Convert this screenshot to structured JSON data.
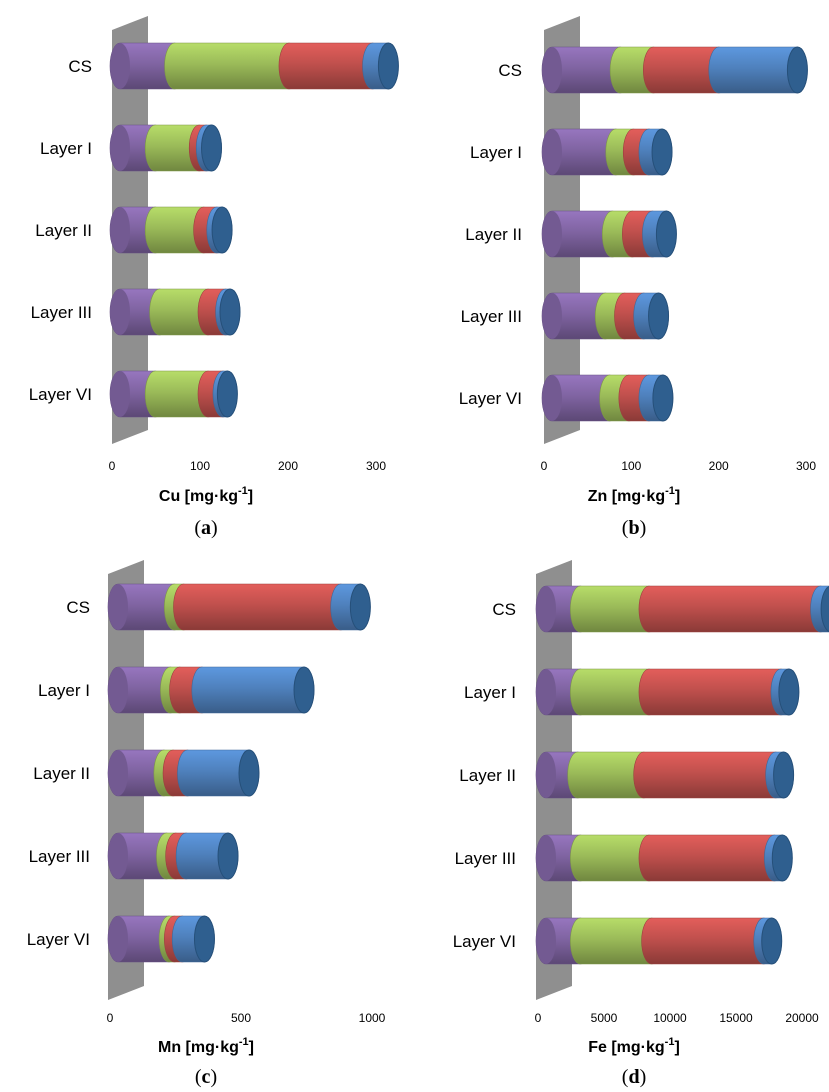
{
  "colors": {
    "wall": "#8f8f8f",
    "segments": [
      "#8064a2",
      "#9bbb59",
      "#c0504d",
      "#4f81bd"
    ]
  },
  "chart_data": [
    {
      "type": "bar",
      "orientation": "horizontal",
      "stacked": true,
      "style": "3d-cylinder",
      "panel_label": "(a)",
      "xlabel": "Cu [mg·kg-1]",
      "xlabel_main": "Cu [mg·kg",
      "xlabel_sup": "-1",
      "xlabel_close": "]",
      "categories": [
        "CS",
        "Layer  I",
        "Layer  II",
        "Layer  III",
        "Layer  VI"
      ],
      "xlim": [
        0,
        300
      ],
      "xticks": [
        0,
        100,
        200,
        300
      ],
      "series": [
        {
          "values": [
            62,
            40,
            40,
            45,
            40
          ]
        },
        {
          "values": [
            130,
            50,
            55,
            55,
            60
          ]
        },
        {
          "values": [
            95,
            8,
            15,
            20,
            17
          ]
        },
        {
          "values": [
            18,
            6,
            6,
            5,
            5
          ]
        }
      ]
    },
    {
      "type": "bar",
      "orientation": "horizontal",
      "stacked": true,
      "style": "3d-cylinder",
      "panel_label": "(b)",
      "xlabel": "Zn [mg·kg-1]",
      "xlabel_main": "Zn [mg·kg",
      "xlabel_sup": "-1",
      "xlabel_close": "]",
      "categories": [
        "CS",
        "Layer  I",
        "Layer  II",
        "Layer  III",
        "Layer  VI"
      ],
      "xlim": [
        0,
        300
      ],
      "xticks": [
        0,
        100,
        200,
        300
      ],
      "series": [
        {
          "values": [
            78,
            73,
            69,
            61,
            66
          ]
        },
        {
          "values": [
            38,
            20,
            23,
            22,
            22
          ]
        },
        {
          "values": [
            75,
            18,
            23,
            22,
            23
          ]
        },
        {
          "values": [
            90,
            15,
            16,
            17,
            16
          ]
        }
      ]
    },
    {
      "type": "bar",
      "orientation": "horizontal",
      "stacked": true,
      "style": "3d-cylinder",
      "panel_label": "(c)",
      "xlabel": "Mn [mg·kg-1]",
      "xlabel_main": "Mn [mg·kg",
      "xlabel_sup": "-1",
      "xlabel_close": "]",
      "categories": [
        "CS",
        "Layer  I",
        "Layer  II",
        "Layer  III",
        "Layer  VI"
      ],
      "xlim": [
        0,
        1000
      ],
      "xticks": [
        0,
        500,
        1000
      ],
      "series": [
        {
          "values": [
            215,
            200,
            175,
            185,
            195
          ]
        },
        {
          "values": [
            35,
            35,
            35,
            35,
            20
          ]
        },
        {
          "values": [
            600,
            85,
            55,
            40,
            30
          ]
        },
        {
          "values": [
            75,
            390,
            235,
            160,
            85
          ]
        }
      ]
    },
    {
      "type": "bar",
      "orientation": "horizontal",
      "stacked": true,
      "style": "3d-cylinder",
      "panel_label": "(d)",
      "xlabel": "Fe [mg·kg-1]",
      "xlabel_main": "Fe [mg·kg",
      "xlabel_sup": "-1",
      "xlabel_close": "]",
      "categories": [
        "CS",
        "Layer I",
        "Layer II",
        "Layer III",
        "Layer VI"
      ],
      "xlim": [
        0,
        20000
      ],
      "xticks": [
        0,
        5000,
        10000,
        15000,
        20000
      ],
      "series": [
        {
          "values": [
            2600,
            2600,
            2400,
            2600,
            2600
          ]
        },
        {
          "values": [
            5200,
            5200,
            5000,
            5200,
            5400
          ]
        },
        {
          "values": [
            13000,
            10000,
            10000,
            9500,
            8500
          ]
        },
        {
          "values": [
            800,
            600,
            600,
            600,
            600
          ]
        }
      ]
    }
  ]
}
